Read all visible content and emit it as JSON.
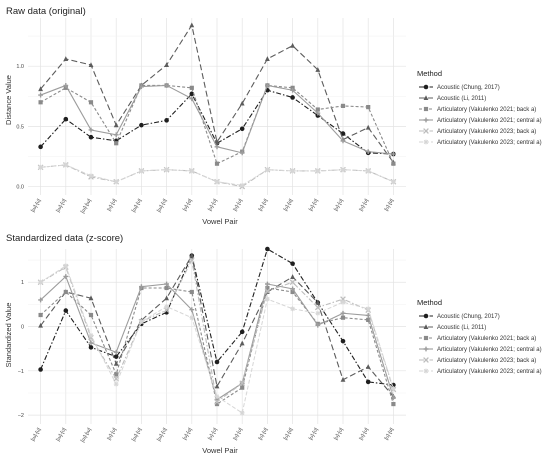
{
  "colors": {
    "chung": "#1f1f1f",
    "li": "#5c5c5c",
    "vak21back": "#8a8a8a",
    "vak21central": "#9c9c9c",
    "vak23back": "#bdbdbd",
    "vak23central": "#d6d6d6"
  },
  "chart_data": [
    {
      "type": "line",
      "title": "Raw data (original)",
      "xlabel": "Vowel Pair",
      "ylabel": "Distance Value",
      "categories": [
        "[ɯ]-[u]",
        "[ɯ]-[ʊ]",
        "[ɯ]-[ɯ]",
        "[ʊ]-[ʊ]",
        "[ɯ]-[ʊ]",
        "[ɯ]-[ʊ]",
        "[ʊ]-[ɑ]",
        "[ʊ]-[ʊ]",
        "[ʊ]-[ʊ]",
        "[ʊ]-[ʊ]",
        "[ʊ]-[ɑ]",
        "[ʊ]-[ʊ]",
        "[ʊ]-[ʊ]",
        "[ʊ]-[ʊ]",
        "[ʊ]-[ɑ]"
      ],
      "ylim": [
        -0.07,
        1.4
      ],
      "yticks": [
        0.0,
        0.5,
        1.0
      ],
      "tick_labels": [
        "0.0",
        "0.5",
        "1.0"
      ],
      "series": [
        {
          "name": "Acoustic (Chung, 2017)",
          "values": [
            0.33,
            0.56,
            0.41,
            0.38,
            0.51,
            0.55,
            0.77,
            0.36,
            0.48,
            0.8,
            0.74,
            0.59,
            0.44,
            0.28,
            0.27
          ]
        },
        {
          "name": "Acoustic (Li, 2011)",
          "values": [
            0.81,
            1.06,
            1.01,
            0.51,
            0.84,
            1.01,
            1.34,
            0.37,
            0.69,
            1.06,
            1.17,
            0.97,
            0.39,
            0.49,
            0.2
          ]
        },
        {
          "name": "Articulatory (Vakulenko 2021; back a)",
          "values": [
            0.7,
            0.82,
            0.7,
            0.36,
            0.84,
            0.84,
            0.82,
            0.19,
            0.29,
            0.84,
            0.82,
            0.64,
            0.67,
            0.66,
            0.19
          ]
        },
        {
          "name": "Articulatory (Vakulenko 2021; central a)",
          "values": [
            0.76,
            0.84,
            0.47,
            0.43,
            0.83,
            0.84,
            0.73,
            0.33,
            0.28,
            0.84,
            0.8,
            0.61,
            0.38,
            0.29,
            0.27
          ]
        },
        {
          "name": "Articulatory (Vakulenko 2023; back a)",
          "values": [
            0.16,
            0.18,
            0.08,
            0.04,
            0.13,
            0.14,
            0.13,
            0.04,
            0.0,
            0.14,
            0.13,
            0.13,
            0.14,
            0.13,
            0.04
          ]
        },
        {
          "name": "Articulatory (Vakulenko 2023; central a)",
          "values": [
            0.16,
            0.18,
            0.09,
            0.04,
            0.13,
            0.14,
            0.13,
            0.04,
            0.01,
            0.14,
            0.13,
            0.13,
            0.14,
            0.13,
            0.04
          ]
        }
      ],
      "legend": {
        "title": "Method",
        "position": "right"
      },
      "grid": true
    },
    {
      "type": "line",
      "title": "Standardized data (z-score)",
      "xlabel": "Vowel Pair",
      "ylabel": "Standardized Value",
      "categories": [
        "[ɯ]-[u]",
        "[ɯ]-[ʊ]",
        "[ɯ]-[ɯ]",
        "[ʊ]-[ʊ]",
        "[ɯ]-[ʊ]",
        "[ɯ]-[ʊ]",
        "[ʊ]-[ɑ]",
        "[ʊ]-[ʊ]",
        "[ʊ]-[ʊ]",
        "[ʊ]-[ʊ]",
        "[ʊ]-[ɑ]",
        "[ʊ]-[ʊ]",
        "[ʊ]-[ʊ]",
        "[ʊ]-[ʊ]",
        "[ʊ]-[ɑ]"
      ],
      "ylim": [
        -2.2,
        1.75
      ],
      "yticks": [
        -2,
        -1,
        0,
        1
      ],
      "tick_labels": [
        "−2",
        "−1",
        "0",
        "1"
      ],
      "series": [
        {
          "name": "Acoustic (Chung, 2017)",
          "values": [
            -0.97,
            0.36,
            -0.47,
            -0.68,
            0.06,
            0.32,
            1.6,
            -0.8,
            -0.12,
            1.75,
            1.42,
            0.54,
            -0.33,
            -1.25,
            -1.32
          ]
        },
        {
          "name": "Acoustic (Li, 2011)",
          "values": [
            0.02,
            0.78,
            0.64,
            -0.84,
            0.14,
            0.64,
            1.6,
            -1.35,
            -0.38,
            0.78,
            1.12,
            0.54,
            -1.2,
            -0.91,
            -1.58
          ]
        },
        {
          "name": "Articulatory (Vakulenko 2021; back a)",
          "values": [
            0.26,
            0.78,
            0.26,
            -1.08,
            0.87,
            0.87,
            0.78,
            -1.75,
            -1.38,
            0.87,
            0.78,
            0.06,
            0.2,
            0.15,
            -1.75
          ]
        },
        {
          "name": "Articulatory (Vakulenko 2021; central a)",
          "values": [
            0.6,
            1.13,
            -0.37,
            -0.58,
            0.9,
            0.96,
            0.38,
            -1.65,
            -1.28,
            0.96,
            0.85,
            0.03,
            0.3,
            0.25,
            -1.6
          ]
        },
        {
          "name": "Articulatory (Vakulenko 2023; back a)",
          "values": [
            1.0,
            1.34,
            -0.25,
            -1.18,
            0.11,
            0.37,
            1.5,
            -1.7,
            -1.28,
            0.8,
            1.0,
            0.43,
            0.62,
            0.37,
            -1.42
          ]
        },
        {
          "name": "Articulatory (Vakulenko 2023; central a)",
          "values": [
            1.0,
            1.37,
            -0.2,
            -1.3,
            0.11,
            0.45,
            0.2,
            -1.58,
            -1.95,
            0.62,
            0.4,
            0.3,
            0.55,
            0.4,
            -1.4
          ]
        }
      ],
      "legend": {
        "title": "Method",
        "position": "right"
      },
      "grid": true
    }
  ]
}
